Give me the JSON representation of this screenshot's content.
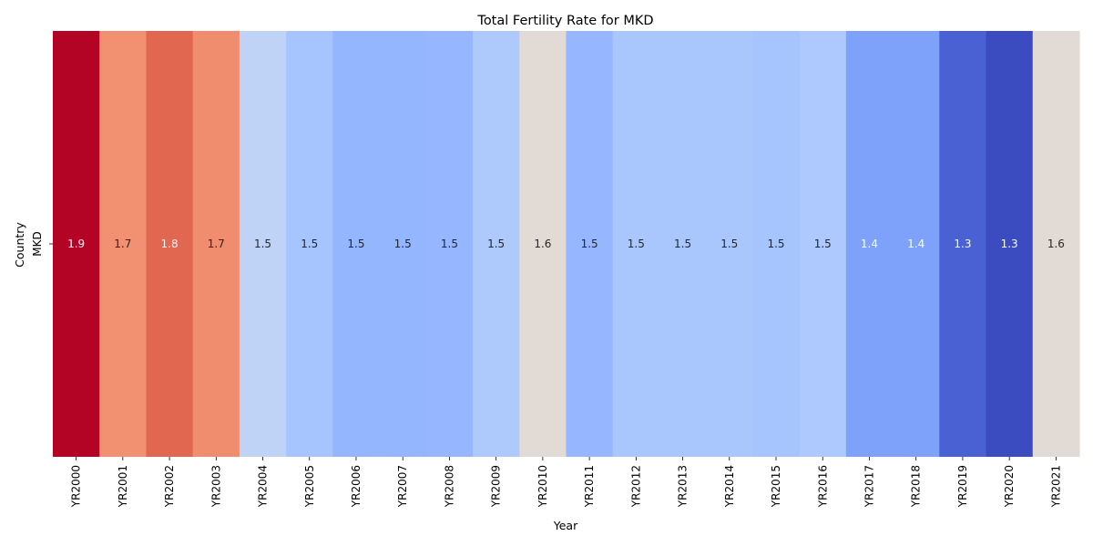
{
  "chart_data": {
    "type": "heatmap",
    "title": "Total Fertility Rate for MKD",
    "xlabel": "Year",
    "ylabel": "Country",
    "colormap": "coolwarm",
    "rows": [
      "MKD"
    ],
    "columns": [
      "YR2000",
      "YR2001",
      "YR2002",
      "YR2003",
      "YR2004",
      "YR2005",
      "YR2006",
      "YR2007",
      "YR2008",
      "YR2009",
      "YR2010",
      "YR2011",
      "YR2012",
      "YR2013",
      "YR2014",
      "YR2015",
      "YR2016",
      "YR2017",
      "YR2018",
      "YR2019",
      "YR2020",
      "YR2021"
    ],
    "values": [
      [
        1.9,
        1.7,
        1.8,
        1.7,
        1.5,
        1.5,
        1.5,
        1.5,
        1.5,
        1.5,
        1.6,
        1.5,
        1.5,
        1.5,
        1.5,
        1.5,
        1.5,
        1.4,
        1.4,
        1.3,
        1.3,
        1.6
      ]
    ],
    "annotations": [
      [
        "1.9",
        "1.7",
        "1.8",
        "1.7",
        "1.5",
        "1.5",
        "1.5",
        "1.5",
        "1.5",
        "1.5",
        "1.6",
        "1.5",
        "1.5",
        "1.5",
        "1.5",
        "1.5",
        "1.5",
        "1.4",
        "1.4",
        "1.3",
        "1.3",
        "1.6"
      ]
    ],
    "cell_colors": [
      "#b40426",
      "#f29072",
      "#e16751",
      "#f18d6f",
      "#bfd3f6",
      "#a6c4fe",
      "#94b6ff",
      "#94b6ff",
      "#96b7ff",
      "#aec9fc",
      "#e2dad5",
      "#96b7ff",
      "#aac7fd",
      "#aac7fd",
      "#aac7fd",
      "#a6c4fe",
      "#adc9fd",
      "#7ea1fa",
      "#7ea1fa",
      "#4961d2",
      "#3b4cc0",
      "#e2dad5"
    ],
    "legend": "none",
    "grid": false
  }
}
